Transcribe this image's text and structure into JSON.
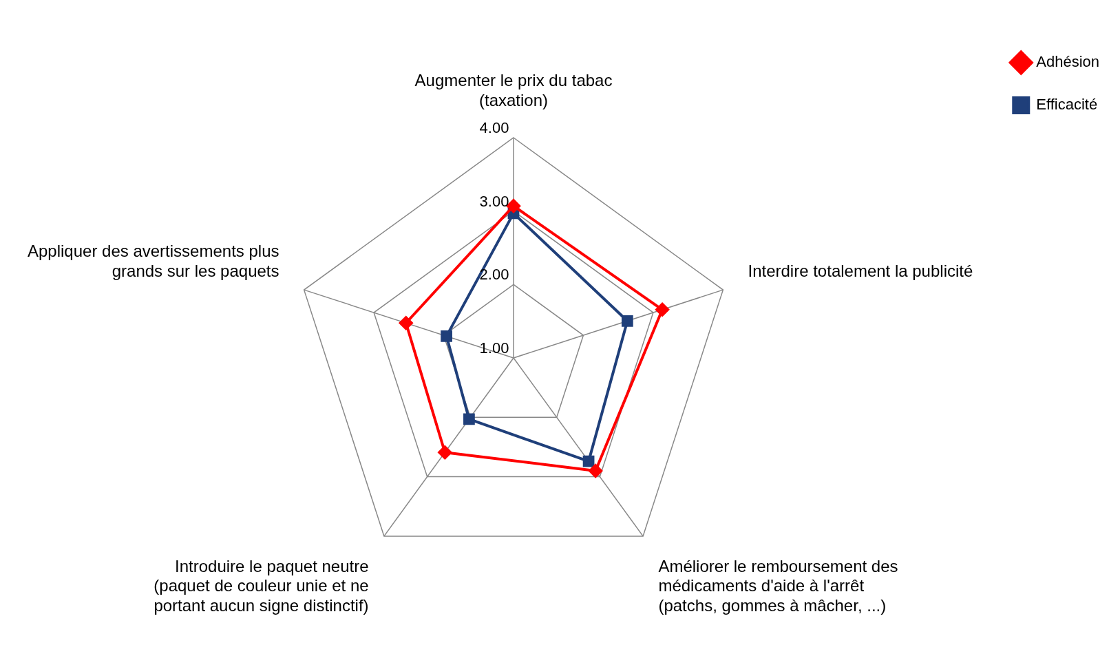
{
  "chart_data": {
    "type": "radar",
    "categories": [
      "Augmenter le prix du tabac (taxation)",
      "Interdire totalement la publicité",
      "Améliorer le remboursement des médicaments d'aide à l'arrêt (patchs, gommes à mâcher, ...)",
      "Introduire le paquet neutre (paquet de couleur unie et ne portant aucun signe distinctif)",
      "Appliquer des avertissements plus grands sur les paquets"
    ],
    "series": [
      {
        "name": "Adhésion",
        "color": "#ff0000",
        "marker": "diamond",
        "values": [
          3.07,
          3.13,
          2.9,
          2.59,
          2.54
        ]
      },
      {
        "name": "Efficacité",
        "color": "#1f3f7a",
        "marker": "square",
        "values": [
          2.97,
          2.63,
          2.74,
          2.03,
          1.96
        ]
      }
    ],
    "ylim": [
      1,
      4
    ],
    "yticks": [
      {
        "value": 1,
        "label": "1.00"
      },
      {
        "value": 2,
        "label": "2.00"
      },
      {
        "value": 3,
        "label": "3.00"
      },
      {
        "value": 4,
        "label": "4.00"
      }
    ],
    "grid": true,
    "legend": "top right"
  }
}
